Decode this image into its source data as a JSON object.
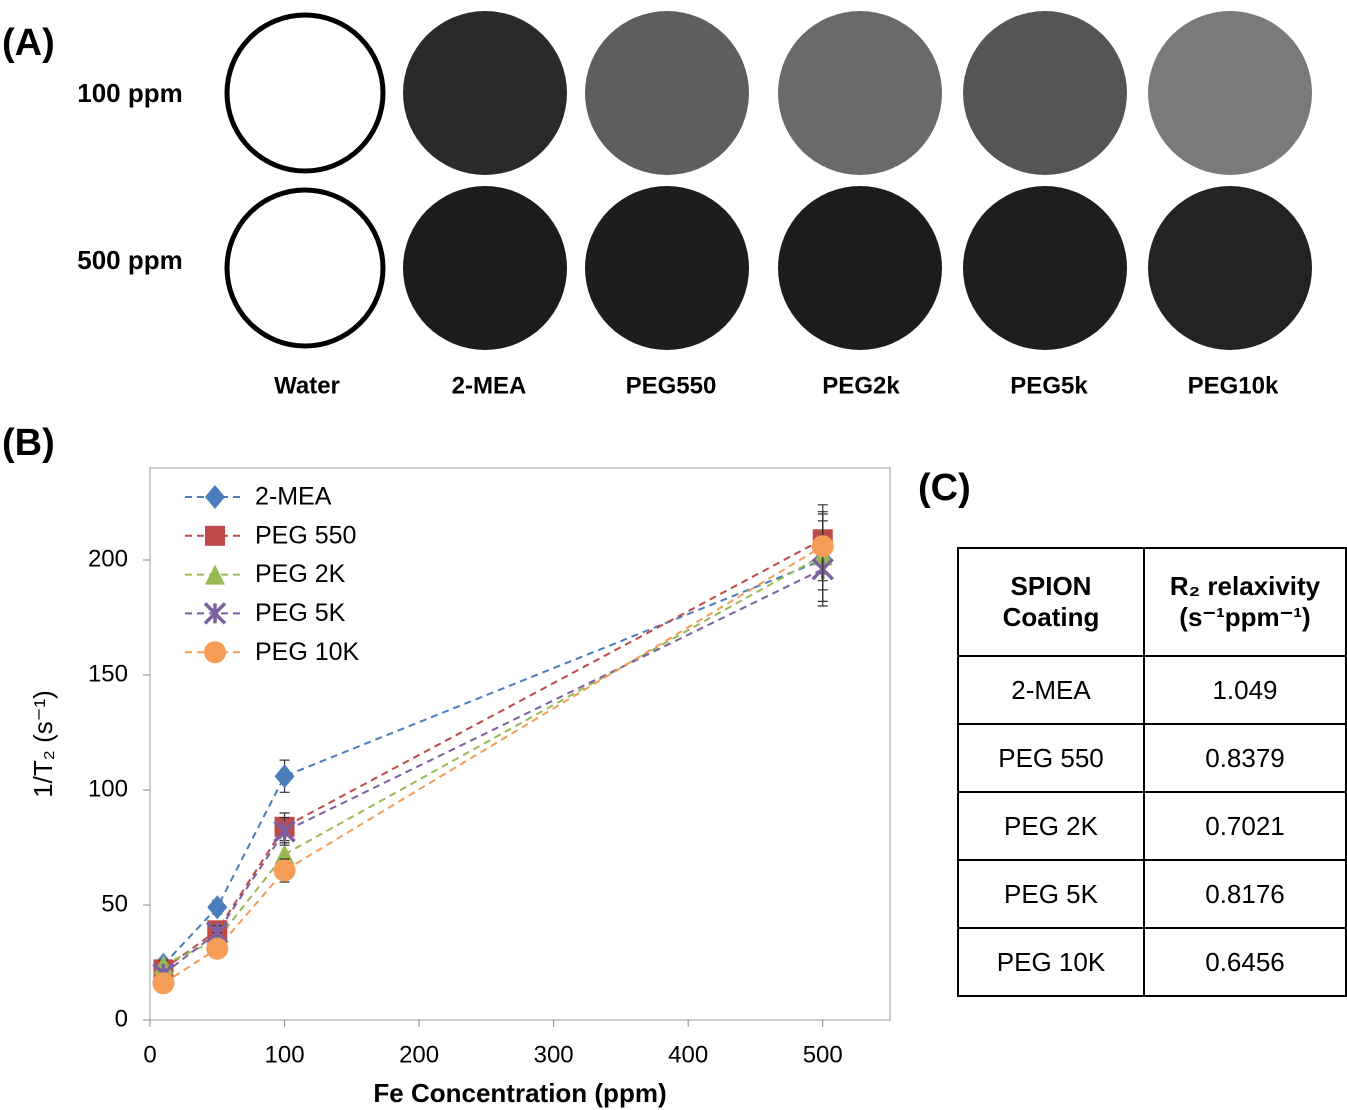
{
  "panel_labels": [
    "(A)",
    "(B)",
    "(C)"
  ],
  "panel_a": {
    "row_labels": [
      "100 ppm",
      "500 ppm"
    ],
    "column_labels": [
      "Water",
      "2-MEA",
      "PEG550",
      "PEG2k",
      "PEG5k",
      "PEG10k"
    ]
  },
  "chart_data": {
    "type": "line",
    "x_label": "Fe Concentration (ppm)",
    "y_label": "1/T₂ (s⁻¹)",
    "x": [
      10,
      50,
      100,
      500
    ],
    "series": [
      {
        "name": "2-MEA",
        "color": "#4a7ebb",
        "marker": "diamond",
        "values": [
          24,
          49,
          106,
          200
        ],
        "errors": [
          2,
          3,
          7,
          20
        ]
      },
      {
        "name": "PEG 550",
        "color": "#be4b48",
        "marker": "square",
        "values": [
          22,
          39,
          84,
          209
        ],
        "errors": [
          2,
          3,
          6,
          15
        ]
      },
      {
        "name": "PEG 2K",
        "color": "#98b954",
        "marker": "triangle",
        "values": [
          24,
          35,
          72,
          202
        ],
        "errors": [
          2,
          3,
          5,
          15
        ]
      },
      {
        "name": "PEG 5K",
        "color": "#7d60a0",
        "marker": "asterisk",
        "values": [
          20,
          38,
          82,
          196
        ],
        "errors": [
          2,
          3,
          6,
          14
        ]
      },
      {
        "name": "PEG 10K",
        "color": "#f59d56",
        "marker": "circle",
        "values": [
          16,
          31,
          65,
          206
        ],
        "errors": [
          2,
          3,
          5,
          15
        ]
      }
    ],
    "xlim": [
      0,
      550
    ],
    "xticks": [
      0,
      100,
      200,
      300,
      400,
      500
    ],
    "ylim": [
      0,
      240
    ],
    "yticks": [
      0,
      50,
      100,
      150,
      200
    ],
    "grid": false,
    "legend": "upper left"
  },
  "table": {
    "header": [
      "SPION Coating",
      "R₂ relaxivity (s⁻¹ppm⁻¹)"
    ],
    "rows": [
      [
        "2-MEA",
        "1.049"
      ],
      [
        "PEG 550",
        "0.8379"
      ],
      [
        "PEG 2K",
        "0.7021"
      ],
      [
        "PEG 5K",
        "0.8176"
      ],
      [
        "PEG 10K",
        "0.6456"
      ]
    ]
  }
}
